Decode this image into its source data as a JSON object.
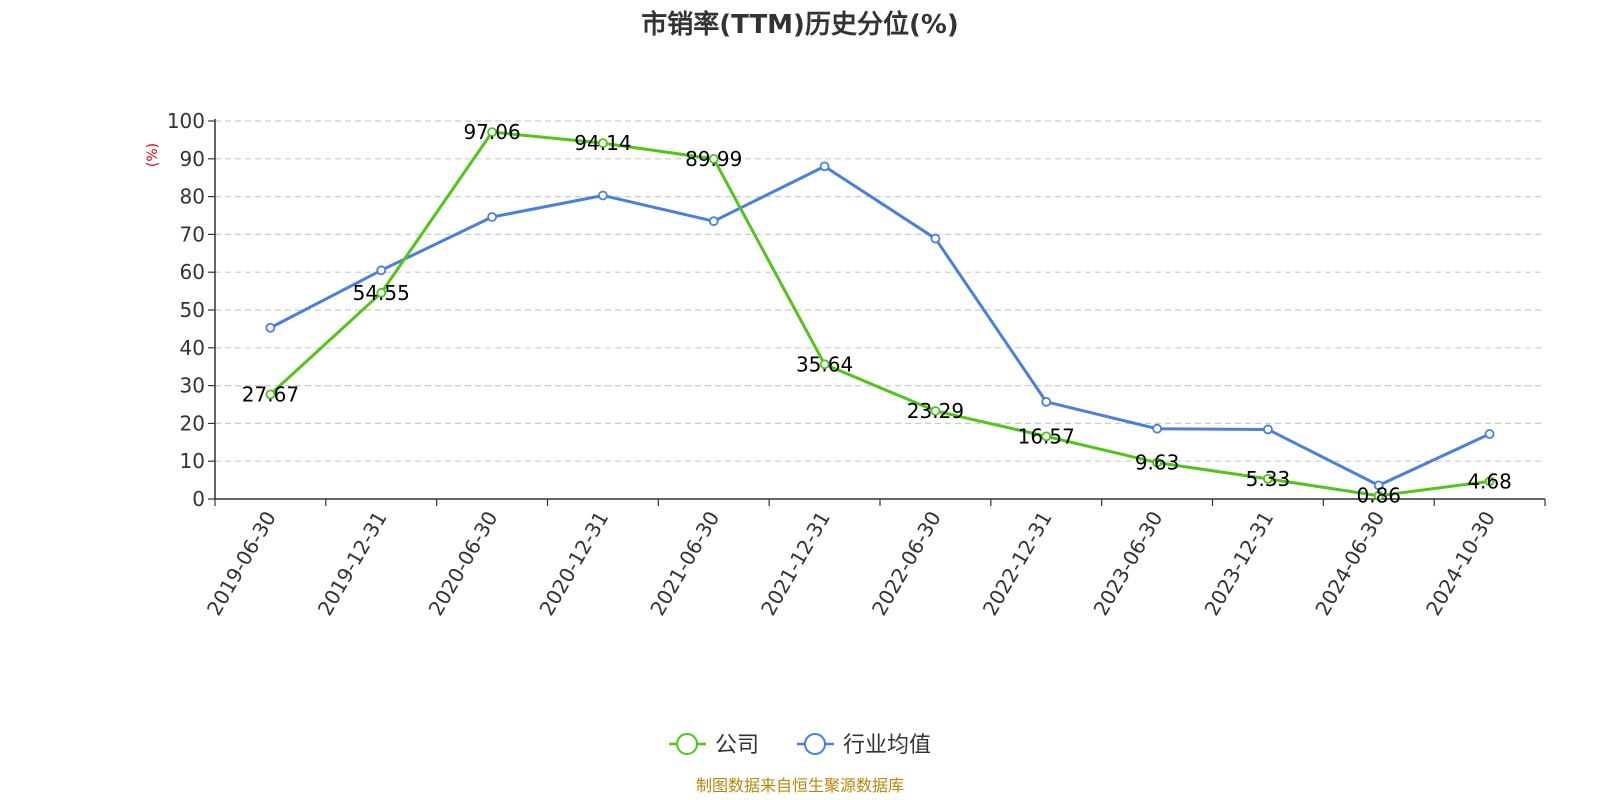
{
  "chart_data": {
    "type": "line",
    "title": "市销率(TTM)历史分位(%)",
    "xlabel": "",
    "ylabel": "(%)",
    "categories": [
      "2019-06-30",
      "2019-12-31",
      "2020-06-30",
      "2020-12-31",
      "2021-06-30",
      "2021-12-31",
      "2022-06-30",
      "2022-12-31",
      "2023-06-30",
      "2023-12-31",
      "2024-06-30",
      "2024-10-30"
    ],
    "ylim": [
      0,
      100
    ],
    "yticks": [
      0,
      10,
      20,
      30,
      40,
      50,
      60,
      70,
      80,
      90,
      100
    ],
    "grid": true,
    "legend_position": "bottom-center",
    "series": [
      {
        "name": "公司",
        "color": "#52c41a",
        "values": [
          27.67,
          54.55,
          97.06,
          94.14,
          89.99,
          35.64,
          23.29,
          16.57,
          9.63,
          5.33,
          0.86,
          4.68
        ],
        "data_labels": [
          "27.67",
          "54.55",
          "97.06",
          "94.14",
          "89.99",
          "35.64",
          "23.29",
          "16.57",
          "9.63",
          "5.33",
          "0.86",
          "4.68"
        ]
      },
      {
        "name": "行业均值",
        "color": "#4a7fdb",
        "values": [
          45.3,
          60.5,
          74.6,
          80.3,
          73.5,
          88.0,
          68.9,
          25.7,
          18.6,
          18.4,
          3.6,
          17.2
        ]
      }
    ]
  },
  "source": "制图数据来自恒生聚源数据库"
}
